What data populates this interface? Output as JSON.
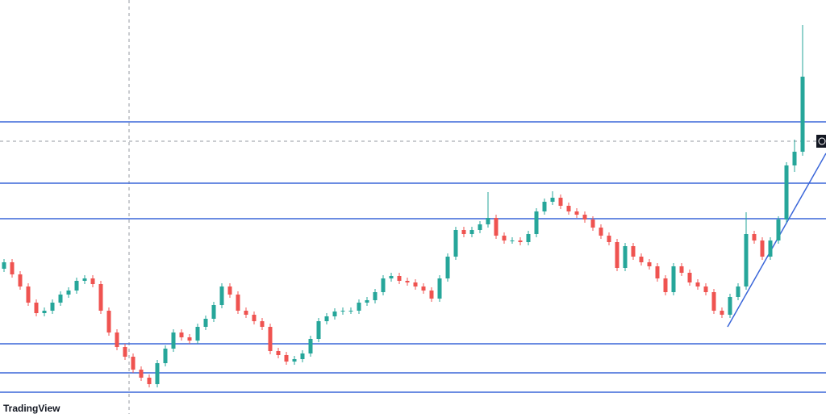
{
  "chart_data": {
    "type": "candlestick",
    "ylim": [
      0,
      513
    ],
    "up_color": "#26a69a",
    "down_color": "#ef5350",
    "level_color": "#3a66d9",
    "candles": [
      [
        180,
        192,
        176,
        188
      ],
      [
        188,
        192,
        169,
        173
      ],
      [
        173,
        177,
        154,
        158
      ],
      [
        158,
        162,
        134,
        138
      ],
      [
        138,
        142,
        121,
        125
      ],
      [
        125,
        132,
        121,
        128
      ],
      [
        128,
        142,
        124,
        138
      ],
      [
        138,
        152,
        134,
        148
      ],
      [
        148,
        157,
        144,
        153
      ],
      [
        153,
        169,
        149,
        165
      ],
      [
        165,
        172,
        161,
        168
      ],
      [
        168,
        172,
        157,
        161
      ],
      [
        161,
        165,
        124,
        128
      ],
      [
        128,
        132,
        97,
        101
      ],
      [
        101,
        105,
        79,
        83
      ],
      [
        83,
        87,
        67,
        71
      ],
      [
        71,
        75,
        51,
        55
      ],
      [
        55,
        59,
        41,
        45
      ],
      [
        45,
        49,
        33,
        37
      ],
      [
        37,
        67,
        33,
        63
      ],
      [
        63,
        85,
        59,
        81
      ],
      [
        81,
        105,
        77,
        101
      ],
      [
        101,
        105,
        91,
        95
      ],
      [
        95,
        99,
        87,
        91
      ],
      [
        91,
        112,
        87,
        108
      ],
      [
        108,
        122,
        104,
        118
      ],
      [
        118,
        139,
        114,
        135
      ],
      [
        135,
        162,
        131,
        158
      ],
      [
        158,
        162,
        144,
        148
      ],
      [
        148,
        152,
        124,
        128
      ],
      [
        128,
        132,
        119,
        123
      ],
      [
        123,
        127,
        111,
        115
      ],
      [
        115,
        119,
        104,
        108
      ],
      [
        108,
        112,
        74,
        78
      ],
      [
        78,
        82,
        69,
        73
      ],
      [
        73,
        77,
        61,
        65
      ],
      [
        65,
        72,
        61,
        68
      ],
      [
        68,
        79,
        64,
        75
      ],
      [
        75,
        97,
        71,
        93
      ],
      [
        93,
        119,
        89,
        115
      ],
      [
        115,
        125,
        111,
        121
      ],
      [
        121,
        131,
        117,
        127
      ],
      [
        127,
        132,
        123,
        128
      ],
      [
        128,
        132,
        124,
        128
      ],
      [
        128,
        142,
        124,
        138
      ],
      [
        138,
        145,
        134,
        141
      ],
      [
        141,
        155,
        137,
        151
      ],
      [
        151,
        172,
        147,
        168
      ],
      [
        168,
        175,
        164,
        171
      ],
      [
        171,
        175,
        161,
        165
      ],
      [
        165,
        169,
        159,
        163
      ],
      [
        163,
        167,
        154,
        158
      ],
      [
        158,
        162,
        149,
        153
      ],
      [
        153,
        157,
        139,
        143
      ],
      [
        143,
        172,
        139,
        168
      ],
      [
        168,
        199,
        164,
        195
      ],
      [
        195,
        232,
        191,
        228
      ],
      [
        228,
        232,
        219,
        223
      ],
      [
        223,
        232,
        219,
        228
      ],
      [
        228,
        239,
        224,
        235
      ],
      [
        235,
        275,
        231,
        243
      ],
      [
        243,
        247,
        217,
        221
      ],
      [
        221,
        225,
        211,
        215
      ],
      [
        215,
        219,
        211,
        215
      ],
      [
        215,
        219,
        209,
        213
      ],
      [
        213,
        227,
        209,
        223
      ],
      [
        223,
        255,
        219,
        251
      ],
      [
        251,
        267,
        247,
        263
      ],
      [
        263,
        276,
        259,
        268
      ],
      [
        268,
        272,
        254,
        258
      ],
      [
        258,
        262,
        247,
        251
      ],
      [
        251,
        255,
        243,
        247
      ],
      [
        247,
        251,
        237,
        241
      ],
      [
        241,
        245,
        227,
        231
      ],
      [
        231,
        235,
        217,
        221
      ],
      [
        221,
        225,
        209,
        213
      ],
      [
        213,
        217,
        177,
        181
      ],
      [
        181,
        212,
        177,
        208
      ],
      [
        208,
        212,
        191,
        195
      ],
      [
        195,
        199,
        184,
        188
      ],
      [
        188,
        192,
        179,
        183
      ],
      [
        183,
        187,
        164,
        168
      ],
      [
        168,
        172,
        147,
        151
      ],
      [
        151,
        187,
        147,
        183
      ],
      [
        183,
        187,
        171,
        175
      ],
      [
        175,
        179,
        159,
        163
      ],
      [
        163,
        167,
        154,
        158
      ],
      [
        158,
        162,
        147,
        151
      ],
      [
        151,
        155,
        124,
        128
      ],
      [
        128,
        132,
        119,
        123
      ],
      [
        123,
        149,
        119,
        145
      ],
      [
        145,
        162,
        141,
        158
      ],
      [
        158,
        250,
        154,
        223
      ],
      [
        223,
        227,
        211,
        215
      ],
      [
        215,
        219,
        191,
        195
      ],
      [
        195,
        219,
        191,
        215
      ],
      [
        215,
        245,
        211,
        241
      ],
      [
        241,
        312,
        237,
        308
      ],
      [
        308,
        340,
        300,
        325
      ],
      [
        325,
        482,
        320,
        418
      ]
    ],
    "levels": [
      362,
      286,
      242,
      87,
      51,
      27
    ],
    "trendline": {
      "x": [
        89.7,
        101.9
      ],
      "y": [
        108,
        323
      ]
    },
    "crosshair": {
      "x": 15.5,
      "y": 338
    },
    "watermark": "TradingView"
  }
}
